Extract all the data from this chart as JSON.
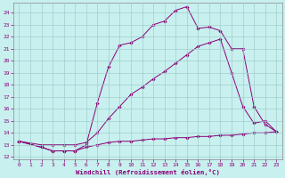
{
  "xlabel": "Windchill (Refroidissement éolien,°C)",
  "bg_color": "#c8f0ee",
  "grid_color": "#a0cece",
  "line_color": "#880077",
  "xlim": [
    -0.5,
    23.5
  ],
  "ylim": [
    11.8,
    24.8
  ],
  "ytick_labels": [
    "12",
    "13",
    "14",
    "15",
    "16",
    "17",
    "18",
    "19",
    "20",
    "21",
    "22",
    "23",
    "24"
  ],
  "ytick_vals": [
    12,
    13,
    14,
    15,
    16,
    17,
    18,
    19,
    20,
    21,
    22,
    23,
    24
  ],
  "xtick_vals": [
    0,
    1,
    2,
    3,
    4,
    5,
    6,
    7,
    8,
    9,
    10,
    11,
    12,
    13,
    14,
    15,
    16,
    17,
    18,
    19,
    20,
    21,
    22,
    23
  ],
  "line1_x": [
    0,
    2,
    3,
    4,
    5,
    6,
    7,
    8,
    9,
    10,
    11,
    12,
    13,
    14,
    15,
    16,
    17,
    18,
    19,
    20,
    21,
    22,
    23
  ],
  "line1_y": [
    13.3,
    12.8,
    12.5,
    12.5,
    12.5,
    13.0,
    16.5,
    19.5,
    21.3,
    21.5,
    22.0,
    23.0,
    23.3,
    24.2,
    24.5,
    22.7,
    22.8,
    22.5,
    21.0,
    21.0,
    16.2,
    14.7,
    14.1
  ],
  "line2_x": [
    0,
    2,
    3,
    4,
    5,
    6,
    7,
    8,
    9,
    10,
    11,
    12,
    13,
    14,
    15,
    16,
    17,
    18,
    19,
    20,
    21,
    22,
    23
  ],
  "line2_y": [
    13.3,
    13.0,
    13.0,
    13.0,
    13.0,
    13.2,
    14.0,
    15.2,
    16.2,
    17.2,
    17.8,
    18.5,
    19.1,
    19.8,
    20.5,
    21.2,
    21.5,
    21.8,
    19.0,
    16.2,
    14.8,
    15.0,
    14.1
  ],
  "line3_x": [
    0,
    2,
    3,
    4,
    5,
    6,
    7,
    8,
    9,
    10,
    11,
    12,
    13,
    14,
    15,
    16,
    17,
    18,
    19,
    20,
    21,
    22,
    23
  ],
  "line3_y": [
    13.3,
    12.8,
    12.5,
    12.5,
    12.5,
    12.8,
    13.0,
    13.2,
    13.3,
    13.3,
    13.4,
    13.5,
    13.5,
    13.6,
    13.6,
    13.7,
    13.7,
    13.8,
    13.8,
    13.9,
    14.0,
    14.0,
    14.1
  ]
}
